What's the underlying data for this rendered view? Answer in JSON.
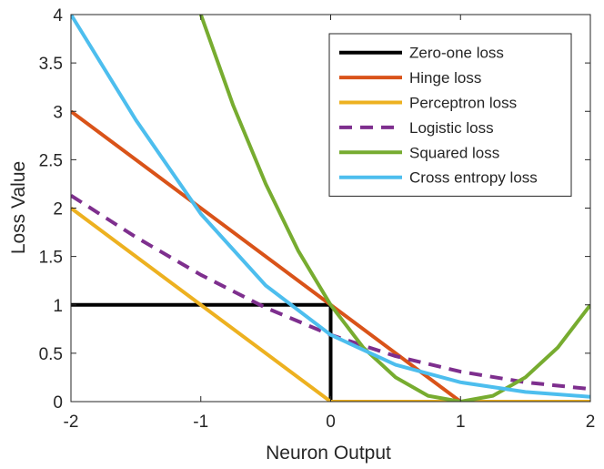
{
  "chart_data": {
    "type": "line",
    "title": "",
    "xlabel": "Neuron Output",
    "ylabel": "Loss Value",
    "xlim": [
      -2,
      2
    ],
    "ylim": [
      0,
      4
    ],
    "xticks": [
      -2,
      -1,
      0,
      1,
      2
    ],
    "xtick_labels": [
      "-2",
      "-1",
      "0",
      "1",
      "2"
    ],
    "yticks": [
      0,
      0.5,
      1,
      1.5,
      2,
      2.5,
      3,
      3.5,
      4
    ],
    "ytick_labels": [
      "0",
      "0.5",
      "1",
      "1.5",
      "2",
      "2.5",
      "3",
      "3.5",
      "4"
    ],
    "grid": false,
    "legend_position": "top-right",
    "series": [
      {
        "name": "Zero-one loss",
        "color": "#000000",
        "style": "solid",
        "x": [
          -2,
          0,
          0,
          2
        ],
        "y": [
          1,
          1,
          0,
          0
        ]
      },
      {
        "name": "Hinge loss",
        "color": "#D95319",
        "style": "solid",
        "x": [
          -2,
          1,
          2
        ],
        "y": [
          3,
          0,
          0
        ]
      },
      {
        "name": "Perceptron loss",
        "color": "#EDB120",
        "style": "solid",
        "x": [
          -2,
          0,
          2
        ],
        "y": [
          2,
          0,
          0
        ]
      },
      {
        "name": "Logistic loss",
        "color": "#7E2F8E",
        "style": "dashed",
        "x": [
          -2,
          -1.5,
          -1,
          -0.5,
          0,
          0.5,
          1,
          1.5,
          2
        ],
        "y": [
          2.13,
          1.7,
          1.31,
          0.97,
          0.69,
          0.47,
          0.31,
          0.2,
          0.13
        ]
      },
      {
        "name": "Squared loss",
        "color": "#77AC30",
        "style": "solid",
        "x": [
          -1,
          -0.75,
          -0.5,
          -0.25,
          0,
          0.25,
          0.5,
          0.75,
          1,
          1.25,
          1.5,
          1.75,
          2
        ],
        "y": [
          4,
          3.06,
          2.25,
          1.56,
          1,
          0.56,
          0.25,
          0.06,
          0,
          0.06,
          0.25,
          0.56,
          1
        ]
      },
      {
        "name": "Cross entropy loss",
        "color": "#4DBEEE",
        "style": "solid",
        "x": [
          -2,
          -1.5,
          -1,
          -0.5,
          0,
          0.5,
          1,
          1.5,
          2
        ],
        "y": [
          4.0,
          2.91,
          1.94,
          1.2,
          0.69,
          0.38,
          0.2,
          0.1,
          0.05
        ]
      }
    ]
  }
}
